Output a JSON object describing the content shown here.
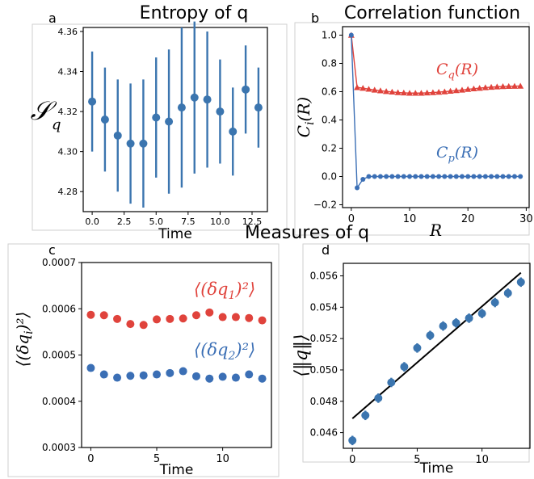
{
  "figure": {
    "section_title_top": "Entropy of q",
    "section_title_top_right": "Correlation function",
    "section_title_bottom": "Measures of q"
  },
  "chart_data": [
    {
      "panel": "a",
      "type": "scatter",
      "title": "Entropy of q",
      "xlabel": "Time",
      "ylabel": "S_q",
      "ylabel_display": "𝒮",
      "ylabel_sub": "q",
      "xlim": [
        -0.7,
        13.7
      ],
      "ylim": [
        4.27,
        4.362
      ],
      "xticks": [
        0.0,
        2.5,
        5.0,
        7.5,
        10.0,
        12.5
      ],
      "xtick_labels": [
        "0.0",
        "2.5",
        "5.0",
        "7.5",
        "10.0",
        "12.5"
      ],
      "yticks": [
        4.28,
        4.3,
        4.32,
        4.34,
        4.36
      ],
      "ytick_labels": [
        "4.28",
        "4.30",
        "4.32",
        "4.34",
        "4.36"
      ],
      "color": "#3b75af",
      "series": [
        {
          "x": [
            0,
            1,
            2,
            3,
            4,
            5,
            6,
            7,
            8,
            9,
            10,
            11,
            12,
            13
          ],
          "y": [
            4.325,
            4.316,
            4.308,
            4.304,
            4.304,
            4.317,
            4.315,
            4.322,
            4.327,
            4.326,
            4.32,
            4.31,
            4.331,
            4.322
          ],
          "yerr": [
            0.025,
            0.026,
            0.028,
            0.03,
            0.032,
            0.03,
            0.036,
            0.04,
            0.038,
            0.034,
            0.026,
            0.022,
            0.022,
            0.02
          ]
        }
      ]
    },
    {
      "panel": "b",
      "type": "line",
      "title": "Correlation function",
      "xlabel": "R",
      "ylabel": "C_i(R)",
      "xlim": [
        -1.5,
        30.5
      ],
      "ylim": [
        -0.22,
        1.06
      ],
      "xticks": [
        0,
        10,
        20,
        30
      ],
      "xtick_labels": [
        "0",
        "10",
        "20",
        "30"
      ],
      "yticks": [
        -0.2,
        0.0,
        0.2,
        0.4,
        0.6,
        0.8,
        1.0
      ],
      "ytick_labels": [
        "−0.2",
        "0.0",
        "0.2",
        "0.4",
        "0.6",
        "0.8",
        "1.0"
      ],
      "series": [
        {
          "name": "C_q(R)",
          "label_main": "C",
          "label_sub": "q",
          "label_arg": "(R)",
          "color": "#e0433c",
          "marker": "triangle",
          "x": [
            0,
            1,
            2,
            3,
            4,
            5,
            6,
            7,
            8,
            9,
            10,
            11,
            12,
            13,
            14,
            15,
            16,
            17,
            18,
            19,
            20,
            21,
            22,
            23,
            24,
            25,
            26,
            27,
            28,
            29
          ],
          "y": [
            1.0,
            0.63,
            0.625,
            0.618,
            0.612,
            0.607,
            0.602,
            0.598,
            0.594,
            0.592,
            0.59,
            0.59,
            0.59,
            0.592,
            0.594,
            0.597,
            0.6,
            0.604,
            0.608,
            0.612,
            0.617,
            0.621,
            0.625,
            0.629,
            0.632,
            0.635,
            0.637,
            0.638,
            0.639,
            0.64
          ]
        },
        {
          "name": "C_p(R)",
          "label_main": "C",
          "label_sub": "p",
          "label_arg": "(R)",
          "color": "#3b6fb5",
          "marker": "circle",
          "x": [
            0,
            1,
            2,
            3,
            4,
            5,
            6,
            7,
            8,
            9,
            10,
            11,
            12,
            13,
            14,
            15,
            16,
            17,
            18,
            19,
            20,
            21,
            22,
            23,
            24,
            25,
            26,
            27,
            28,
            29
          ],
          "y": [
            1.0,
            -0.08,
            -0.02,
            0.0,
            0.0,
            0.0,
            0.0,
            0.0,
            0.0,
            0.0,
            0.0,
            0.0,
            0.0,
            0.0,
            0.0,
            0.0,
            0.0,
            0.0,
            0.0,
            0.0,
            0.0,
            0.0,
            0.0,
            0.0,
            0.0,
            0.0,
            0.0,
            0.0,
            0.0,
            0.0
          ]
        }
      ]
    },
    {
      "panel": "c",
      "type": "scatter",
      "title": "",
      "xlabel": "Time",
      "ylabel": "⟨(δq_i)²⟩",
      "xlim": [
        -0.7,
        13.7
      ],
      "ylim": [
        0.0003,
        0.0007
      ],
      "xticks": [
        0,
        5,
        10
      ],
      "xtick_labels": [
        "0",
        "5",
        "10"
      ],
      "yticks": [
        0.0003,
        0.0004,
        0.0005,
        0.0006,
        0.0007
      ],
      "ytick_labels": [
        "0.0003",
        "0.0004",
        "0.0005",
        "0.0006",
        "0.0007"
      ],
      "series": [
        {
          "name": "⟨(δq_1)²⟩",
          "label_sub": "1",
          "color": "#e0433c",
          "x": [
            0,
            1,
            2,
            3,
            4,
            5,
            6,
            7,
            8,
            9,
            10,
            11,
            12,
            13
          ],
          "y": [
            0.000587,
            0.000586,
            0.000578,
            0.000567,
            0.000565,
            0.000577,
            0.000578,
            0.000579,
            0.000586,
            0.000592,
            0.000582,
            0.000582,
            0.00058,
            0.000575
          ]
        },
        {
          "name": "⟨(δq_2)²⟩",
          "label_sub": "2",
          "color": "#3b6fb5",
          "x": [
            0,
            1,
            2,
            3,
            4,
            5,
            6,
            7,
            8,
            9,
            10,
            11,
            12,
            13
          ],
          "y": [
            0.000472,
            0.000458,
            0.000451,
            0.000455,
            0.000456,
            0.000458,
            0.000461,
            0.000465,
            0.000454,
            0.000449,
            0.000453,
            0.000451,
            0.000458,
            0.000449
          ]
        }
      ]
    },
    {
      "panel": "d",
      "type": "scatter",
      "title": "",
      "xlabel": "Time",
      "ylabel": "⟨‖q‖⟩",
      "xlim": [
        -0.7,
        13.7
      ],
      "ylim": [
        0.045,
        0.0568
      ],
      "xticks": [
        0,
        5,
        10
      ],
      "xtick_labels": [
        "0",
        "5",
        "10"
      ],
      "yticks": [
        0.046,
        0.048,
        0.05,
        0.052,
        0.054,
        0.056
      ],
      "ytick_labels": [
        "0.046",
        "0.048",
        "0.050",
        "0.052",
        "0.054",
        "0.056"
      ],
      "color": "#3b75af",
      "fit_line": {
        "x": [
          0,
          13
        ],
        "y": [
          0.0469,
          0.0562
        ],
        "color": "#000000"
      },
      "series": [
        {
          "x": [
            0,
            1,
            2,
            3,
            4,
            5,
            6,
            7,
            8,
            9,
            10,
            11,
            12,
            13
          ],
          "y": [
            0.0455,
            0.0471,
            0.0482,
            0.0492,
            0.0502,
            0.0514,
            0.0522,
            0.0528,
            0.053,
            0.0533,
            0.0536,
            0.0543,
            0.0549,
            0.0556
          ],
          "yerr": [
            0.0003,
            0.0003,
            0.0003,
            0.0003,
            0.0003,
            0.0003,
            0.0003,
            0.0003,
            0.0003,
            0.0003,
            0.0003,
            0.0003,
            0.0003,
            0.0003
          ]
        }
      ]
    }
  ]
}
